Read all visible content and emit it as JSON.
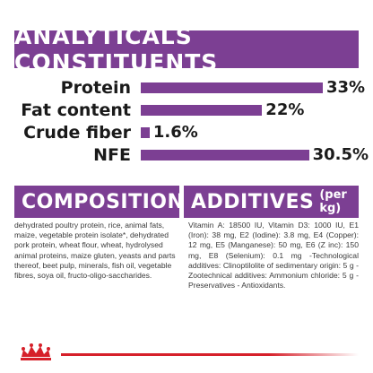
{
  "header": {
    "title": "ANALYTICALS CONSTITUENTS"
  },
  "nutrients": [
    {
      "label": "Protein",
      "value": "33%",
      "percent": 33
    },
    {
      "label": "Fat content",
      "value": "22%",
      "percent": 22
    },
    {
      "label": "Crude fiber",
      "value": "1.6%",
      "percent": 1.6
    },
    {
      "label": "NFE",
      "value": "30.5%",
      "percent": 30.5
    }
  ],
  "composition": {
    "title": "COMPOSITION",
    "text": "dehydrated poultry protein, rice, animal fats, maize, vegetable protein isolate*, dehydrated pork protein, wheat flour, wheat, hydrolysed animal proteins, maize gluten, yeasts and parts thereof, beet pulp, minerals, fish oil, vegetable fibres, soya oil, fructo-oligo-saccharides."
  },
  "additives": {
    "title": "ADDITIVES",
    "unit": "(per kg)",
    "text": "Vitamin A: 18500 IU, Vitamin D3: 1000 IU, E1 (Iron): 38 mg, E2 (Iodine): 3.8 mg, E4 (Copper): 12 mg, E5 (Manganese): 50 mg, E6 (Z inc): 150 mg, E8 (Selenium): 0.1 mg -Technological additives: Clinoptilolite of sedimentary origin: 5 g - Zootechnical additives: Ammonium chloride: 5 g - Preservatives - Antioxidants."
  },
  "colors": {
    "accent": "#7c3f93",
    "brand_red": "#d6202a"
  },
  "logo": {
    "icon": "royal-canin-crown-icon"
  }
}
